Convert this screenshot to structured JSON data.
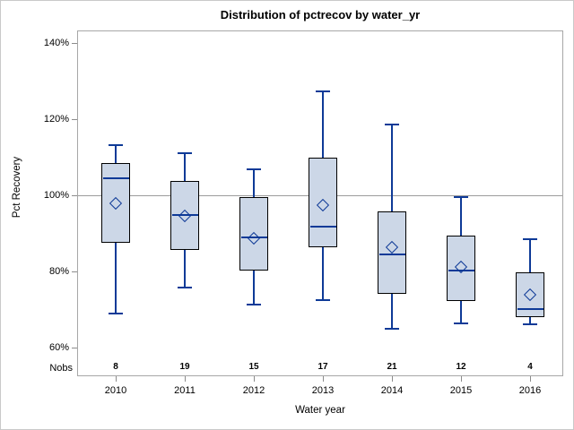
{
  "chart_data": {
    "type": "box",
    "title": "Distribution of pctrecov by water_yr",
    "xlabel": "Water year",
    "ylabel": "Pct Recovery",
    "nobs_label": "Nobs",
    "ylim": [
      52.6,
      143.4
    ],
    "yticks": [
      60,
      80,
      100,
      120,
      140
    ],
    "ytick_format": "percent",
    "refline": 100,
    "grid": "refline-only",
    "legend": "none",
    "categories": [
      "2010",
      "2011",
      "2012",
      "2013",
      "2014",
      "2015",
      "2016"
    ],
    "nobs": [
      8,
      19,
      15,
      17,
      21,
      12,
      4
    ],
    "boxes": [
      {
        "low": 69.0,
        "q1": 87.6,
        "median": 104.5,
        "q3": 108.5,
        "high": 113.3,
        "mean": 98.0
      },
      {
        "low": 75.8,
        "q1": 85.8,
        "median": 94.9,
        "q3": 104.0,
        "high": 111.2,
        "mean": 94.6
      },
      {
        "low": 71.5,
        "q1": 80.3,
        "median": 89.0,
        "q3": 99.6,
        "high": 107.0,
        "mean": 88.8
      },
      {
        "low": 72.5,
        "q1": 86.5,
        "median": 92.0,
        "q3": 110.1,
        "high": 127.5,
        "mean": 97.5
      },
      {
        "low": 65.1,
        "q1": 74.3,
        "median": 84.5,
        "q3": 95.8,
        "high": 118.8,
        "mean": 86.4
      },
      {
        "low": 66.5,
        "q1": 72.4,
        "median": 80.4,
        "q3": 89.6,
        "high": 99.7,
        "mean": 81.2
      },
      {
        "low": 66.3,
        "q1": 68.0,
        "median": 70.3,
        "q3": 79.8,
        "high": 88.5,
        "mean": 73.9
      }
    ]
  },
  "colors": {
    "box_fill": "#ccd7e7",
    "box_border": "#000000",
    "line_blue": "#0e3a97",
    "refline_gray": "#9b9b9b",
    "wall_border": "#a7a7a7",
    "tick_gray": "#8c8c8c",
    "text": "#000000",
    "background": "#ffffff"
  }
}
